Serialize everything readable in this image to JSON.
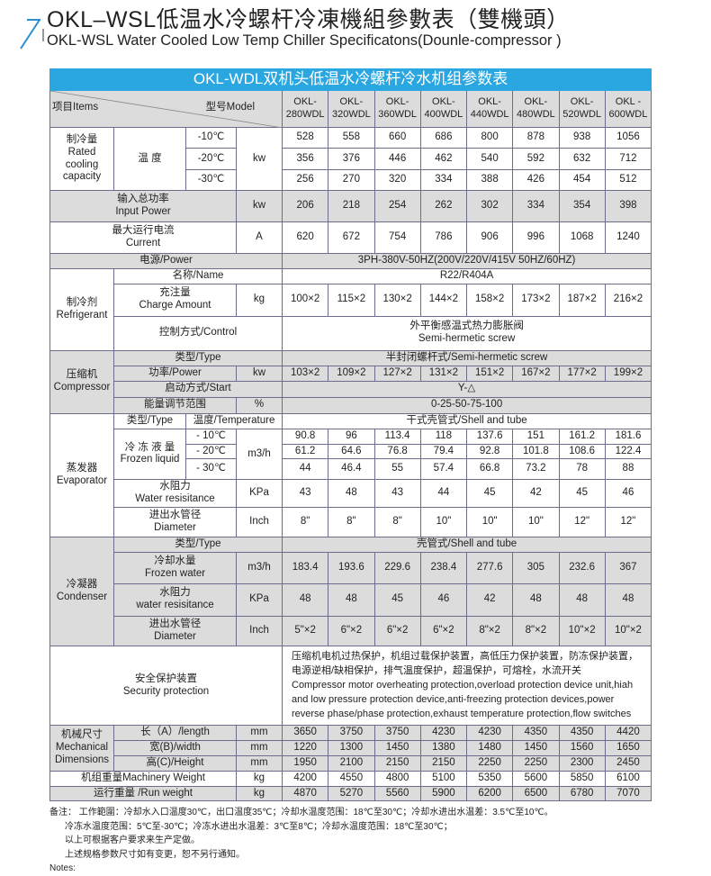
{
  "title": {
    "zh": "OKL–WSL低温水冷螺杆冷凍機組參數表（雙機頭）",
    "en": "OKL-WSL Water Cooled Low Temp Chiller Specificatons(Dounle-compressor )",
    "arrow_icon": "arrow-up-right",
    "accent_color": "#2a8fd0"
  },
  "table": {
    "banner": "OKL-WDL双机头低温水冷螺杆冷水机组参数表",
    "banner_color": "#2aa7e1",
    "items_label": "项目Items",
    "model_label": "型号Model",
    "models": [
      "OKL-\n280WDL",
      "OKL-\n320WDL",
      "OKL-\n360WDL",
      "OKL-\n400WDL",
      "OKL-\n440WDL",
      "OKL-\n480WDL",
      "OKL-\n520WDL",
      "OKL -\n600WDL"
    ],
    "cooling": {
      "label": "制冷量\nRated\ncooling\ncapacity",
      "temp_label": "温  度",
      "unit": "kw",
      "temps": [
        "-10℃",
        "-20℃",
        "-30℃"
      ],
      "rows": [
        [
          "528",
          "558",
          "660",
          "686",
          "800",
          "878",
          "938",
          "1056"
        ],
        [
          "356",
          "376",
          "446",
          "462",
          "540",
          "592",
          "632",
          "712"
        ],
        [
          "256",
          "270",
          "320",
          "334",
          "388",
          "426",
          "454",
          "512"
        ]
      ]
    },
    "input_power": {
      "label": "输入总功率\nInput Power",
      "unit": "kw",
      "values": [
        "206",
        "218",
        "254",
        "262",
        "302",
        "334",
        "354",
        "398"
      ]
    },
    "current": {
      "label": "最大运行电流\nCurrent",
      "unit": "A",
      "values": [
        "620",
        "672",
        "754",
        "786",
        "906",
        "996",
        "1068",
        "1240"
      ]
    },
    "power": {
      "label": "电源/Power",
      "value": "3PH-380V-50HZ(200V/220V/415V  50HZ/60HZ)"
    },
    "refrigerant": {
      "label": "制冷剂\nRefrigerant",
      "name_label": "名称/Name",
      "name_value": "R22/R404A",
      "charge_label": "充注量\nCharge Amount",
      "charge_unit": "kg",
      "charge_values": [
        "100×2",
        "115×2",
        "130×2",
        "144×2",
        "158×2",
        "173×2",
        "187×2",
        "216×2"
      ],
      "control_label": "控制方式/Control",
      "control_value": "外平衡感温式热力膨胀阀\nSemi-hermetic screw"
    },
    "compressor": {
      "label": "压缩机\nCompressor",
      "type_label": "类型/Type",
      "type_value": "半封闭螺杆式/Semi-hermetic screw",
      "power_label": "功率/Power",
      "power_unit": "kw",
      "power_values": [
        "103×2",
        "109×2",
        "127×2",
        "131×2",
        "151×2",
        "167×2",
        "177×2",
        "199×2"
      ],
      "start_label": "启动方式/Start",
      "start_value": "Y-△",
      "energy_label": "能量调节范围",
      "energy_unit": "%",
      "energy_value": "0-25-50-75-100"
    },
    "evaporator": {
      "label": "蒸发器\nEvaporator",
      "type_label": "类型/Type",
      "temp_label": "温度/Temperature",
      "type_value": "干式壳管式/Shell and tube",
      "frozen_label": "冷 冻 液 量\nFrozen liquid",
      "frozen_unit": "m3/h",
      "temps": [
        "- 10℃",
        "- 20℃",
        "- 30℃"
      ],
      "frozen_rows": [
        [
          "90.8",
          "96",
          "113.4",
          "118",
          "137.6",
          "151",
          "161.2",
          "181.6"
        ],
        [
          "61.2",
          "64.6",
          "76.8",
          "79.4",
          "92.8",
          "101.8",
          "108.6",
          "122.4"
        ],
        [
          "44",
          "46.4",
          "55",
          "57.4",
          "66.8",
          "73.2",
          "78",
          "88"
        ]
      ],
      "resistance_label": "水阻力\nWater resisitance",
      "resistance_unit": "KPa",
      "resistance_values": [
        "43",
        "48",
        "43",
        "44",
        "45",
        "42",
        "45",
        "46"
      ],
      "diameter_label": "进出水管径\nDiameter",
      "diameter_unit": "Inch",
      "diameter_values": [
        "8\"",
        "8\"",
        "8\"",
        "10\"",
        "10\"",
        "10\"",
        "12\"",
        "12\""
      ]
    },
    "condenser": {
      "label": "冷凝器\nCondenser",
      "type_label": "类型/Type",
      "type_value": "壳管式/Shell and tube",
      "water_label": "冷却水量\nFrozen water",
      "water_unit": "m3/h",
      "water_values": [
        "183.4",
        "193.6",
        "229.6",
        "238.4",
        "277.6",
        "305",
        "232.6",
        "367"
      ],
      "resistance_label": "水阻力\nwater resisitance",
      "resistance_unit": "KPa",
      "resistance_values": [
        "48",
        "48",
        "45",
        "46",
        "42",
        "48",
        "48",
        "48"
      ],
      "diameter_label": "进出水管径\nDiameter",
      "diameter_unit": "Inch",
      "diameter_values": [
        "5\"×2",
        "6\"×2",
        "6\"×2",
        "6\"×2",
        "8\"×2",
        "8\"×2",
        "10\"×2",
        "10\"×2"
      ]
    },
    "security": {
      "label": "安全保护装置\nSecurity protection",
      "text": "压缩机电机过热保护，机组过载保护装置，高低压力保护装置，防冻保护装置，电源逆相/缺相保护，排气温度保护，超温保护，可熔栓，水流开关\nCompressor motor overheating protection,overload protection device unit,hiah and low pressure protection device,anti-freezing protection devices,power reverse phase/phase protection,exhaust temperature protection,flow switches"
    },
    "mechanical": {
      "label": "机械尺寸\nMechanical\nDimensions",
      "unit": "mm",
      "length_label": "长（A）/length",
      "length_values": [
        "3650",
        "3750",
        "3750",
        "4230",
        "4230",
        "4350",
        "4350",
        "4420"
      ],
      "width_label": "宽(B)/width",
      "width_values": [
        "1220",
        "1300",
        "1450",
        "1380",
        "1480",
        "1450",
        "1560",
        "1650"
      ],
      "height_label": "高(C)/Height",
      "height_values": [
        "1950",
        "2100",
        "2150",
        "2150",
        "2250",
        "2250",
        "2300",
        "2450"
      ]
    },
    "machinery_weight": {
      "label": "机组重量Machinery Weight",
      "unit": "kg",
      "values": [
        "4200",
        "4550",
        "4800",
        "5100",
        "5350",
        "5600",
        "5850",
        "6100"
      ]
    },
    "run_weight": {
      "label": "运行重量 /Run weight",
      "unit": "kg",
      "values": [
        "4870",
        "5270",
        "5560",
        "5900",
        "6200",
        "6500",
        "6780",
        "7070"
      ]
    }
  },
  "notes": [
    "备注：  工作範圍：冷却水入口温度30℃，出口温度35℃；冷却水温度范围：18℃至30℃；冷却水进出水温差：3.5℃至10℃。",
    "冷冻水温度范围：5℃至-30℃；冷冻水进出水温差：3℃至8℃；冷却水温度范围：18℃至30℃；",
    "以上可根据客户要求来生产定做。",
    "上述规格参数尺寸如有变更，恕不另行通知。",
    "Notes:"
  ]
}
